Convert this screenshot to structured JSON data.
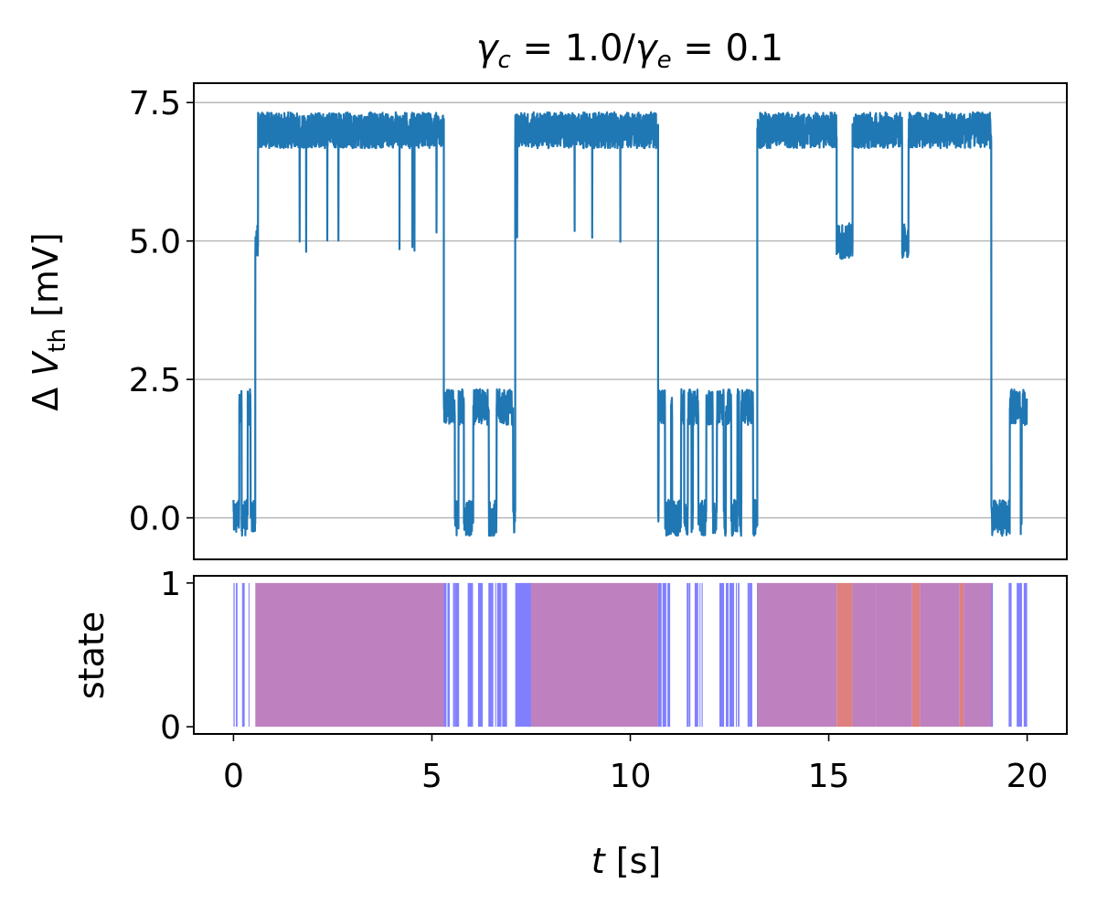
{
  "title": {
    "gamma_c_symbol": "γ",
    "gamma_c_sub": "c",
    "gamma_c_value": " = 1.0/",
    "gamma_e_symbol": "γ",
    "gamma_e_sub": "e",
    "gamma_e_value": " = 0.1"
  },
  "colors": {
    "trace": "#1f77b4",
    "state_blue": "#8080ff",
    "state_purple": "#bf80bf",
    "state_red": "#df8080",
    "grid": "#b0b0b0"
  },
  "chart_data": [
    {
      "type": "line",
      "panel": "top",
      "ylabel_prefix": "Δ ",
      "ylabel_var": "V",
      "ylabel_sub": "th",
      "ylabel_unit": " [mV]",
      "xlim": [
        -1,
        21
      ],
      "ylim": [
        -0.75,
        7.85
      ],
      "yticks": [
        0.0,
        2.5,
        5.0,
        7.5
      ],
      "ytick_labels": [
        "0.0",
        "2.5",
        "5.0",
        "7.5"
      ],
      "grid_y": true,
      "levels": {
        "L0": 0.0,
        "L1": 2.0,
        "L3": 5.0,
        "L2": 7.0
      },
      "segments": [
        {
          "t0": 0.0,
          "t1": 0.55,
          "level": "L0/L1"
        },
        {
          "t0": 0.55,
          "t1": 0.62,
          "level": "L3"
        },
        {
          "t0": 0.62,
          "t1": 5.3,
          "level": "L2"
        },
        {
          "t0": 5.3,
          "t1": 7.1,
          "level": "L0/L1"
        },
        {
          "t0": 7.1,
          "t1": 10.7,
          "level": "L2"
        },
        {
          "t0": 10.7,
          "t1": 13.2,
          "level": "L0/L1"
        },
        {
          "t0": 13.2,
          "t1": 15.2,
          "level": "L2"
        },
        {
          "t0": 15.2,
          "t1": 15.6,
          "level": "L3"
        },
        {
          "t0": 15.6,
          "t1": 19.1,
          "level": "L2/L3"
        },
        {
          "t0": 19.1,
          "t1": 20.0,
          "level": "L0/L1"
        }
      ]
    },
    {
      "type": "bar",
      "panel": "bottom",
      "ylabel": "state",
      "xlabel_var": "t",
      "xlabel_unit": " [s]",
      "xlim": [
        -1,
        21
      ],
      "ylim": [
        -0.05,
        1.05
      ],
      "xticks": [
        0,
        5,
        10,
        15,
        20
      ],
      "xtick_labels": [
        "0",
        "5",
        "10",
        "15",
        "20"
      ],
      "yticks": [
        0,
        1
      ],
      "ytick_labels": [
        "0",
        "1"
      ],
      "bands": [
        {
          "t0": 0.55,
          "t1": 5.3,
          "state": "purple"
        },
        {
          "t0": 7.5,
          "t1": 10.7,
          "state": "purple"
        },
        {
          "t0": 13.2,
          "t1": 15.2,
          "state": "purple"
        },
        {
          "t0": 15.2,
          "t1": 15.6,
          "state": "red"
        },
        {
          "t0": 15.6,
          "t1": 16.2,
          "state": "purple"
        },
        {
          "t0": 16.2,
          "t1": 17.1,
          "state": "purple"
        },
        {
          "t0": 17.1,
          "t1": 17.3,
          "state": "red"
        },
        {
          "t0": 17.3,
          "t1": 18.3,
          "state": "purple"
        },
        {
          "t0": 18.3,
          "t1": 18.4,
          "state": "red"
        },
        {
          "t0": 18.4,
          "t1": 19.1,
          "state": "purple"
        }
      ]
    }
  ]
}
